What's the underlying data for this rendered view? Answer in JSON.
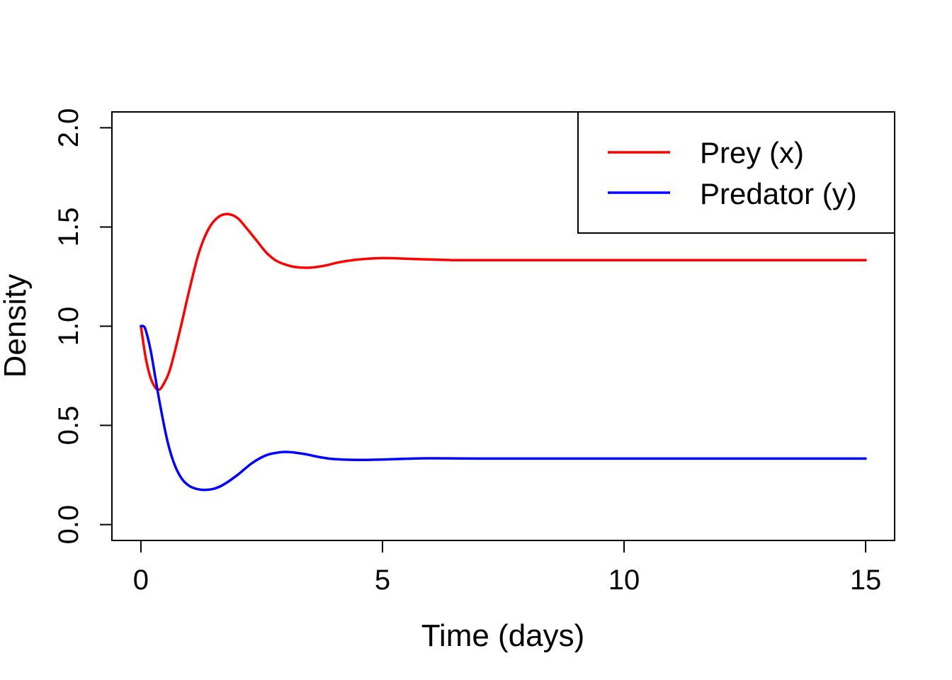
{
  "chart_data": {
    "type": "line",
    "title": "",
    "xlabel": "Time (days)",
    "ylabel": "Density",
    "xlim": [
      -0.6,
      15.6
    ],
    "ylim": [
      -0.08,
      2.08
    ],
    "xticks": [
      0,
      5,
      10,
      15
    ],
    "xtick_labels": [
      "0",
      "5",
      "10",
      "15"
    ],
    "yticks": [
      0.0,
      0.5,
      1.0,
      1.5,
      2.0
    ],
    "ytick_labels": [
      "0.0",
      "0.5",
      "1.0",
      "1.5",
      "2.0"
    ],
    "grid": false,
    "legend_position": "top-right",
    "series": [
      {
        "name": "Prey (x)",
        "color": "#ff0000",
        "x": [
          0,
          0.1,
          0.2,
          0.3,
          0.37,
          0.45,
          0.6,
          0.8,
          1.0,
          1.2,
          1.4,
          1.6,
          1.8,
          2.0,
          2.2,
          2.4,
          2.6,
          2.8,
          3.0,
          3.2,
          3.5,
          3.8,
          4.1,
          4.5,
          5.0,
          5.5,
          6.0,
          6.5,
          7,
          8,
          9,
          10,
          11,
          12,
          13,
          14,
          15
        ],
        "y": [
          1.0,
          0.84,
          0.74,
          0.69,
          0.68,
          0.7,
          0.78,
          0.97,
          1.18,
          1.37,
          1.49,
          1.55,
          1.565,
          1.545,
          1.49,
          1.43,
          1.37,
          1.33,
          1.31,
          1.298,
          1.295,
          1.305,
          1.322,
          1.336,
          1.343,
          1.34,
          1.336,
          1.333,
          1.333,
          1.333,
          1.333,
          1.333,
          1.333,
          1.333,
          1.333,
          1.333,
          1.333
        ]
      },
      {
        "name": "Predator (y)",
        "color": "#0000ff",
        "x": [
          0,
          0.05,
          0.1,
          0.2,
          0.3,
          0.4,
          0.55,
          0.7,
          0.85,
          1.0,
          1.15,
          1.3,
          1.5,
          1.7,
          2.0,
          2.3,
          2.6,
          2.9,
          3.1,
          3.4,
          3.7,
          4.0,
          4.5,
          5.0,
          5.5,
          6.0,
          7,
          8,
          9,
          10,
          11,
          12,
          13,
          14,
          15
        ],
        "y": [
          1.0,
          1.0,
          0.98,
          0.88,
          0.74,
          0.6,
          0.42,
          0.3,
          0.23,
          0.195,
          0.18,
          0.175,
          0.18,
          0.2,
          0.25,
          0.31,
          0.35,
          0.365,
          0.365,
          0.355,
          0.34,
          0.33,
          0.326,
          0.328,
          0.332,
          0.334,
          0.333,
          0.333,
          0.333,
          0.333,
          0.333,
          0.333,
          0.333,
          0.333,
          0.333
        ]
      }
    ]
  }
}
